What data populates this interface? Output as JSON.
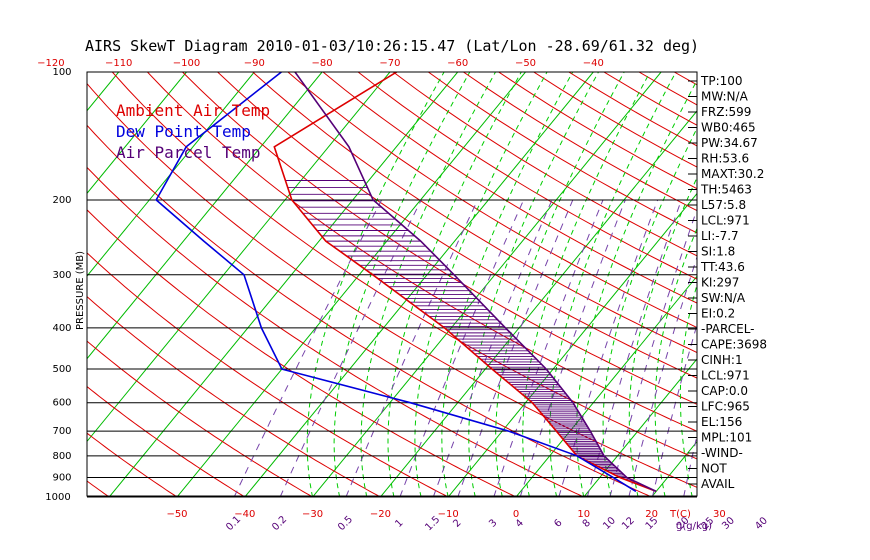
{
  "chart_data": {
    "type": "line",
    "title": "AIRS SkewT Diagram 2010-01-03/10:26:15.47 (Lat/Lon -28.69/61.32 deg)",
    "ylabel": "PRESSURE (MB)",
    "xlabel": "T(C)",
    "mixing_label": "g(g/kg)",
    "pressure_ticks": [
      100,
      200,
      300,
      400,
      500,
      600,
      700,
      800,
      900,
      1000
    ],
    "top_temp_ticks": [
      -120,
      -110,
      -100,
      -90,
      -80,
      -70,
      -60,
      -50,
      -40
    ],
    "bottom_temp_ticks": [
      -50,
      -40,
      -30,
      -20,
      -10,
      0,
      10,
      20,
      30
    ],
    "mixing_ratio_ticks": [
      "0.1",
      "0.2",
      "0.5",
      "1",
      "1.5",
      "2",
      "3",
      "4",
      "6",
      "8",
      "10",
      "12",
      "15",
      "20",
      "25",
      "30",
      "40"
    ],
    "legend": [
      {
        "name": "Ambient Air Temp",
        "color": "#dd0000"
      },
      {
        "name": "Dew Point Temp",
        "color": "#0000dd"
      },
      {
        "name": "Air Parcel Temp",
        "color": "#550077"
      }
    ],
    "series": [
      {
        "name": "Ambient Air Temp",
        "color": "#dd0000",
        "points": [
          [
            100,
            -69
          ],
          [
            150,
            -78
          ],
          [
            200,
            -69
          ],
          [
            250,
            -59
          ],
          [
            300,
            -48
          ],
          [
            400,
            -31
          ],
          [
            500,
            -19
          ],
          [
            600,
            -9
          ],
          [
            700,
            -2
          ],
          [
            800,
            4
          ],
          [
            900,
            13
          ],
          [
            970,
            20
          ]
        ]
      },
      {
        "name": "Dew Point Temp",
        "color": "#0000dd",
        "points": [
          [
            100,
            -86
          ],
          [
            150,
            -91
          ],
          [
            200,
            -89
          ],
          [
            250,
            -77
          ],
          [
            300,
            -67
          ],
          [
            400,
            -58
          ],
          [
            500,
            -50
          ],
          [
            600,
            -27
          ],
          [
            700,
            -9
          ],
          [
            800,
            4
          ],
          [
            900,
            12
          ],
          [
            970,
            17
          ]
        ]
      },
      {
        "name": "Air Parcel Temp",
        "color": "#550077",
        "points": [
          [
            100,
            -84
          ],
          [
            150,
            -67
          ],
          [
            200,
            -57
          ],
          [
            250,
            -45
          ],
          [
            300,
            -36
          ],
          [
            400,
            -22
          ],
          [
            500,
            -11
          ],
          [
            600,
            -3
          ],
          [
            700,
            3
          ],
          [
            800,
            8
          ],
          [
            900,
            14
          ],
          [
            970,
            20
          ]
        ]
      }
    ],
    "indices": [
      "TP:100",
      "MW:N/A",
      "FRZ:599",
      "WB0:465",
      "PW:34.67",
      "RH:53.6",
      "MAXT:30.2",
      "TH:5463",
      "L57:5.8",
      "LCL:971",
      "LI:-7.7",
      "SI:1.8",
      "TT:43.6",
      "KI:297",
      "SW:N/A",
      "EI:0.2",
      "-PARCEL-",
      "CAPE:3698",
      "CINH:1",
      "LCL:971",
      "CAP:0.0",
      "LFC:965",
      "EL:156",
      "MPL:101",
      "-WIND-",
      "NOT",
      "AVAIL"
    ]
  }
}
